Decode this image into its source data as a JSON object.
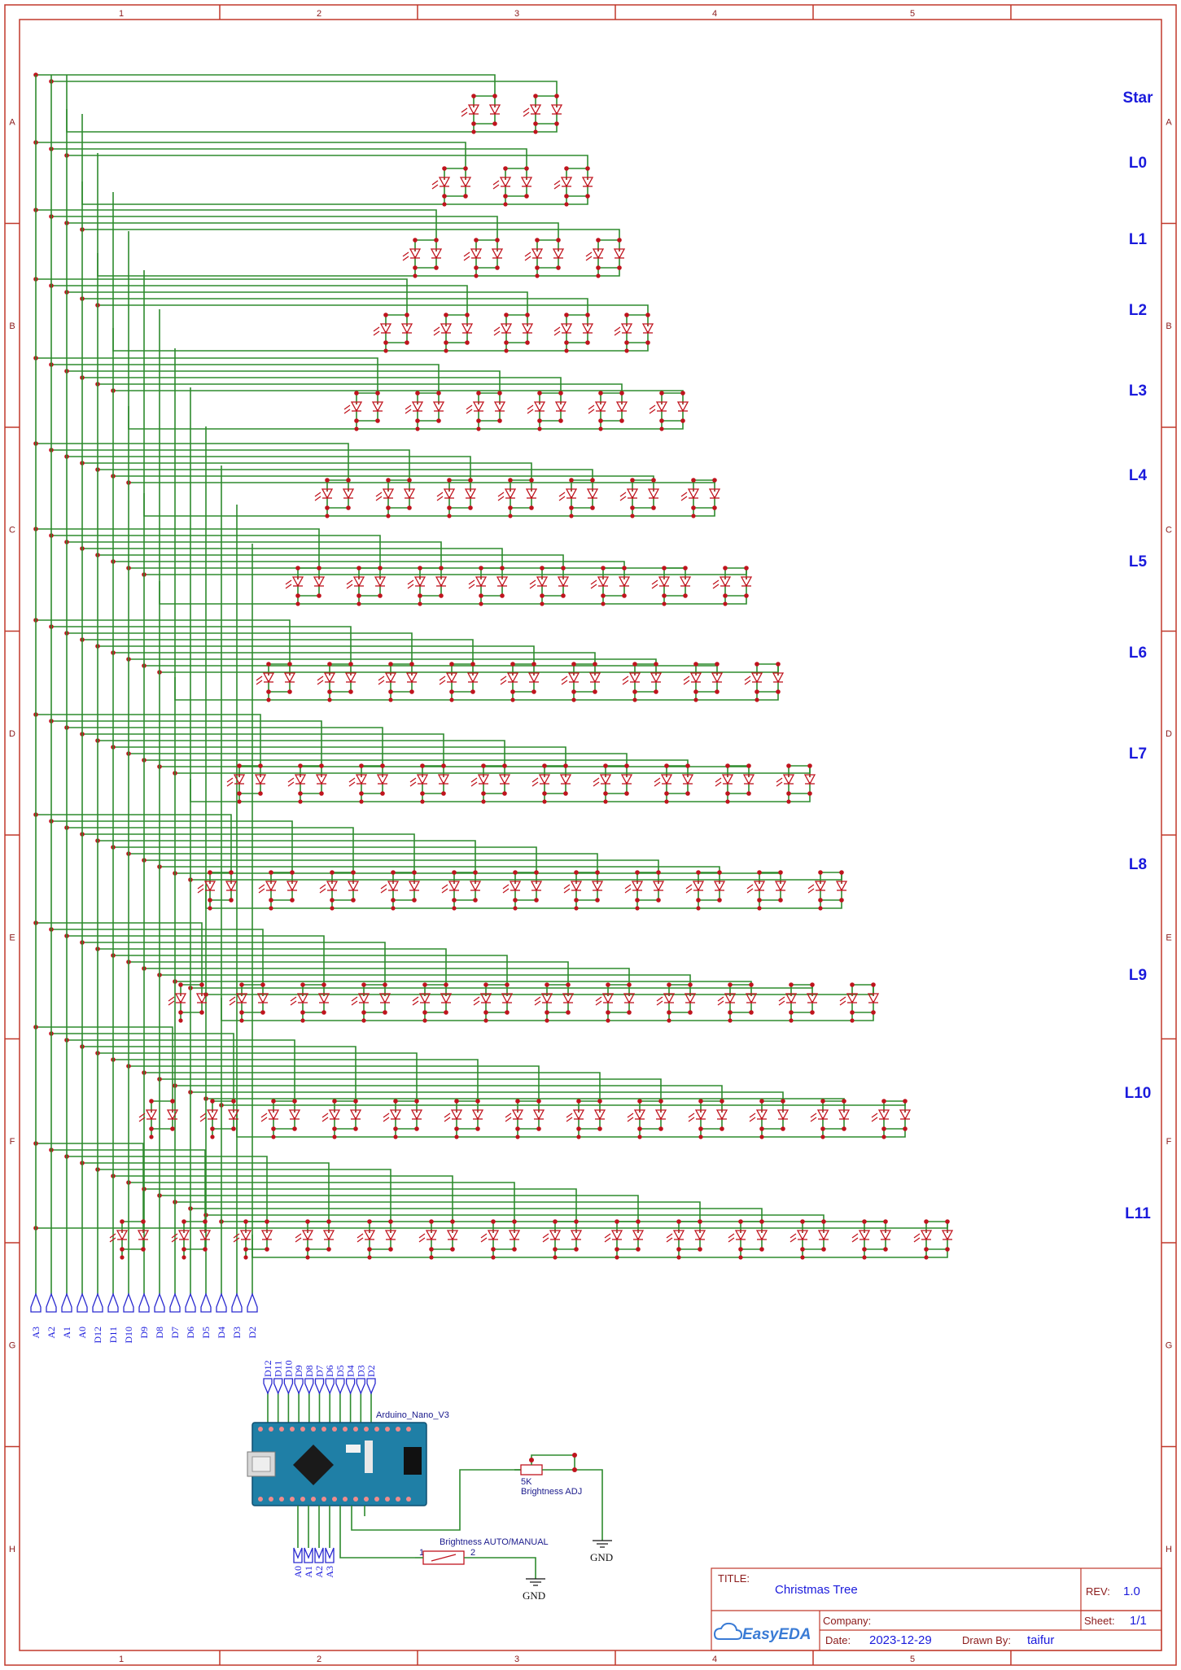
{
  "frame": {
    "col_labels": [
      "1",
      "2",
      "3",
      "4",
      "5"
    ],
    "row_labels": [
      "A",
      "B",
      "C",
      "D",
      "E",
      "F",
      "G",
      "H"
    ]
  },
  "levels": [
    {
      "label": "Star",
      "leds": 2
    },
    {
      "label": "L0",
      "leds": 3
    },
    {
      "label": "L1",
      "leds": 4
    },
    {
      "label": "L2",
      "leds": 5
    },
    {
      "label": "L3",
      "leds": 6
    },
    {
      "label": "L4",
      "leds": 7
    },
    {
      "label": "L5",
      "leds": 8
    },
    {
      "label": "L6",
      "leds": 9
    },
    {
      "label": "L7",
      "leds": 10
    },
    {
      "label": "L8",
      "leds": 11
    },
    {
      "label": "L9",
      "leds": 12
    },
    {
      "label": "L10",
      "leds": 13
    },
    {
      "label": "L11",
      "leds": 14
    }
  ],
  "net_ports_bus": [
    "A3",
    "A2",
    "A1",
    "A0",
    "D12",
    "D11",
    "D10",
    "D9",
    "D8",
    "D7",
    "D6",
    "D5",
    "D4",
    "D3",
    "D2"
  ],
  "nano": {
    "name": "Arduino_Nano_V3",
    "top_ports": [
      "D12",
      "D11",
      "D10",
      "D9",
      "D8",
      "D7",
      "D6",
      "D5",
      "D4",
      "D3",
      "D2"
    ],
    "bottom_ports": [
      "A0",
      "A1",
      "A2",
      "A3"
    ]
  },
  "pot": {
    "value": "5K",
    "name": "Brightness ADJ"
  },
  "switch": {
    "name": "Brightness AUTO/MANUAL",
    "pin1": "1",
    "pin2": "2"
  },
  "gnd_label": "GND",
  "title_block": {
    "title_label": "TITLE:",
    "title": "Christmas Tree",
    "rev_label": "REV:",
    "rev": "1.0",
    "company_label": "Company:",
    "company": "",
    "sheet_label": "Sheet:",
    "sheet": "1/1",
    "date_label": "Date:",
    "date": "2023-12-29",
    "drawn_label": "Drawn By:",
    "drawn_by": "taifur",
    "logo_text": "EasyEDA"
  },
  "colors": {
    "wire": "#2e8b2e",
    "component": "#c0141e",
    "label": "#1a1adc",
    "frame": "#c0392b"
  }
}
